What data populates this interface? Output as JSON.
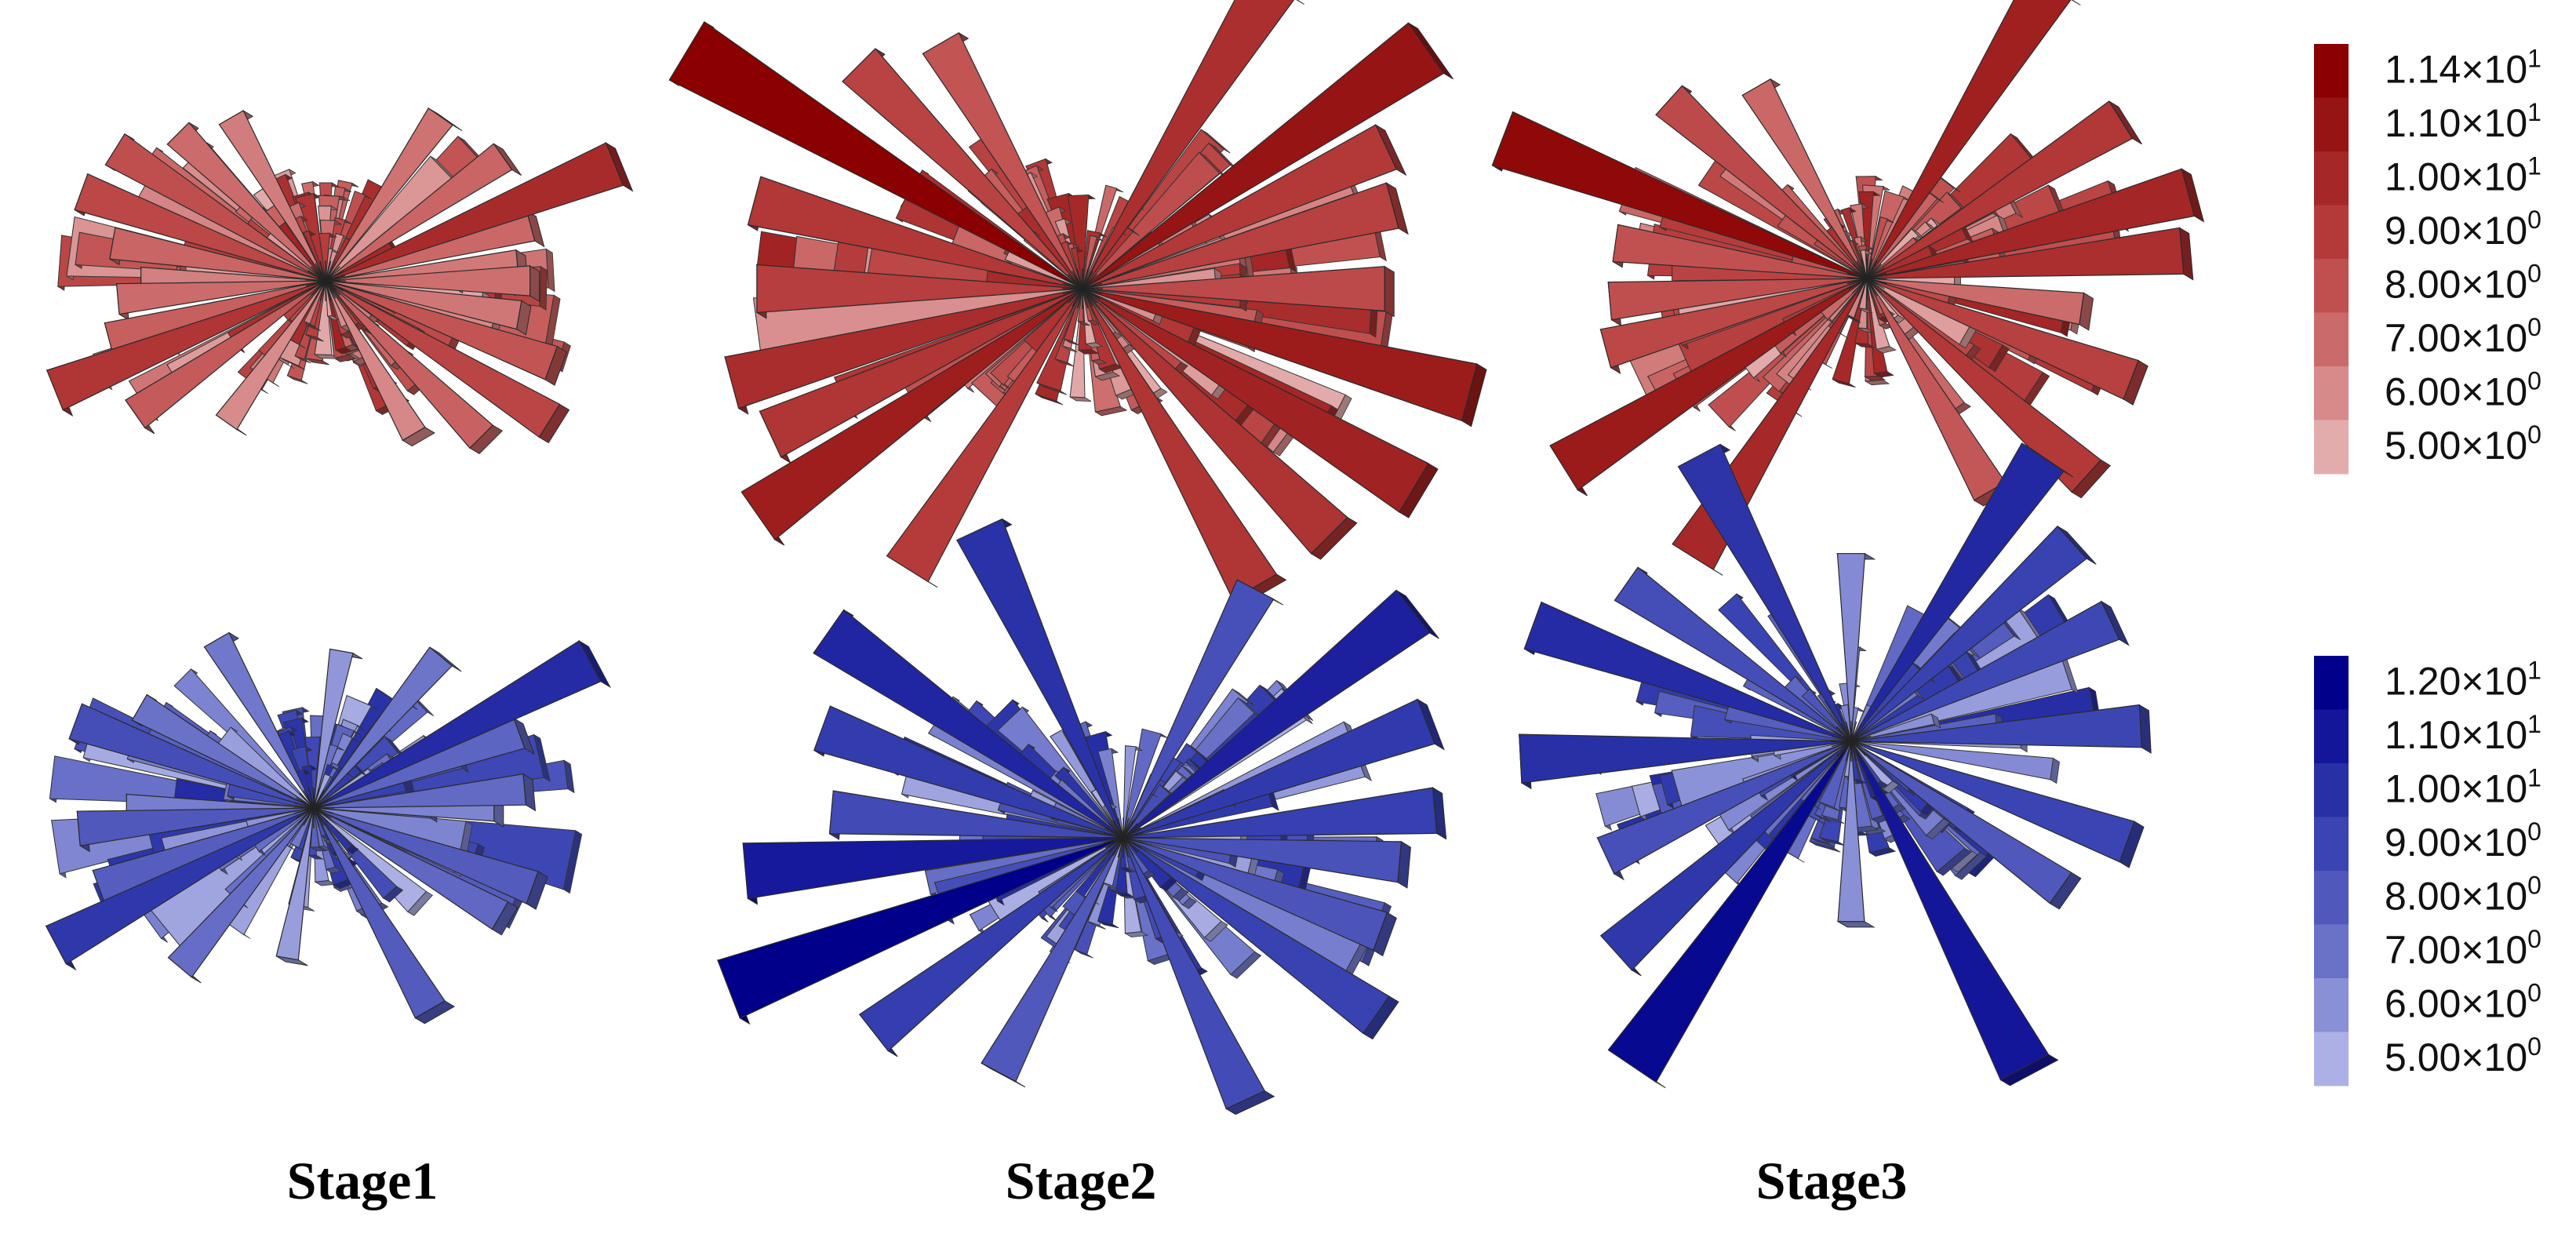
{
  "figure": {
    "stages": [
      "Stage1",
      "Stage2",
      "Stage3"
    ]
  },
  "colorbars": {
    "red": {
      "ticks": [
        {
          "mant": "1.14",
          "exp": "1"
        },
        {
          "mant": "1.10",
          "exp": "1"
        },
        {
          "mant": "1.00",
          "exp": "1"
        },
        {
          "mant": "9.00",
          "exp": "0"
        },
        {
          "mant": "8.00",
          "exp": "0"
        },
        {
          "mant": "7.00",
          "exp": "0"
        },
        {
          "mant": "6.00",
          "exp": "0"
        },
        {
          "mant": "5.00",
          "exp": "0"
        }
      ],
      "colors": [
        "#8b0000",
        "#961414",
        "#a52727",
        "#b43a3a",
        "#c05050",
        "#cb6a6a",
        "#d78a8a",
        "#e3acac"
      ]
    },
    "blue": {
      "ticks": [
        {
          "mant": "1.20",
          "exp": "1"
        },
        {
          "mant": "1.10",
          "exp": "1"
        },
        {
          "mant": "1.00",
          "exp": "1"
        },
        {
          "mant": "9.00",
          "exp": "0"
        },
        {
          "mant": "8.00",
          "exp": "0"
        },
        {
          "mant": "7.00",
          "exp": "0"
        },
        {
          "mant": "6.00",
          "exp": "0"
        },
        {
          "mant": "5.00",
          "exp": "0"
        }
      ],
      "colors": [
        "#00008b",
        "#14169a",
        "#2830a6",
        "#3a44b2",
        "#5058bc",
        "#6a72c8",
        "#8a90d6",
        "#acb0e4"
      ]
    }
  },
  "chart_data": [
    {
      "type": "rose",
      "title": "Stage1",
      "colormap": "red",
      "value_range": [
        5.0,
        11.4
      ],
      "bins": [
        {
          "angle_deg": 22,
          "value": 9.4
        },
        {
          "angle_deg": 202,
          "value": 8.9
        },
        {
          "angle_deg": 148,
          "value": 7.8
        },
        {
          "angle_deg": 328,
          "value": 8.2
        },
        {
          "angle_deg": 160,
          "value": 8.1
        },
        {
          "angle_deg": 340,
          "value": 7.6
        },
        {
          "angle_deg": 195,
          "value": 7.2
        },
        {
          "angle_deg": 15,
          "value": 6.9
        },
        {
          "angle_deg": 185,
          "value": 6.8
        },
        {
          "angle_deg": 5,
          "value": 6.4
        },
        {
          "angle_deg": 0,
          "value": 6.7
        },
        {
          "angle_deg": 180,
          "value": 6.2
        },
        {
          "angle_deg": 35,
          "value": 7.0
        },
        {
          "angle_deg": 215,
          "value": 7.4
        },
        {
          "angle_deg": 55,
          "value": 6.6
        },
        {
          "angle_deg": 235,
          "value": 5.9
        },
        {
          "angle_deg": 120,
          "value": 6.3
        },
        {
          "angle_deg": 300,
          "value": 6.0
        },
        {
          "angle_deg": 135,
          "value": 6.8
        },
        {
          "angle_deg": 315,
          "value": 7.1
        },
        {
          "angle_deg": 170,
          "value": 7.0
        },
        {
          "angle_deg": 350,
          "value": 6.5
        }
      ]
    },
    {
      "type": "rose",
      "title": "Stage2",
      "colormap": "red",
      "value_range": [
        5.0,
        11.4
      ],
      "bins": [
        {
          "angle_deg": 149,
          "value": 11.4
        },
        {
          "angle_deg": 329,
          "value": 9.8
        },
        {
          "angle_deg": 35,
          "value": 10.5
        },
        {
          "angle_deg": 215,
          "value": 10.0
        },
        {
          "angle_deg": 58,
          "value": 9.2
        },
        {
          "angle_deg": 238,
          "value": 8.6
        },
        {
          "angle_deg": 345,
          "value": 10.1
        },
        {
          "angle_deg": 165,
          "value": 8.8
        },
        {
          "angle_deg": 195,
          "value": 9.3
        },
        {
          "angle_deg": 15,
          "value": 8.4
        },
        {
          "angle_deg": 300,
          "value": 8.9
        },
        {
          "angle_deg": 120,
          "value": 7.6
        },
        {
          "angle_deg": 180,
          "value": 8.5
        },
        {
          "angle_deg": 0,
          "value": 8.0
        },
        {
          "angle_deg": 25,
          "value": 8.7
        },
        {
          "angle_deg": 205,
          "value": 8.9
        },
        {
          "angle_deg": 135,
          "value": 8.3
        },
        {
          "angle_deg": 315,
          "value": 9.0
        }
      ]
    },
    {
      "type": "rose",
      "title": "Stage3",
      "colormap": "red",
      "value_range": [
        5.0,
        11.4
      ],
      "bins": [
        {
          "angle_deg": 159,
          "value": 11.0
        },
        {
          "angle_deg": 339,
          "value": 8.4
        },
        {
          "angle_deg": 58,
          "value": 9.9
        },
        {
          "angle_deg": 238,
          "value": 9.5
        },
        {
          "angle_deg": 212,
          "value": 10.2
        },
        {
          "angle_deg": 32,
          "value": 8.8
        },
        {
          "angle_deg": 15,
          "value": 9.6
        },
        {
          "angle_deg": 195,
          "value": 8.1
        },
        {
          "angle_deg": 5,
          "value": 9.2
        },
        {
          "angle_deg": 185,
          "value": 7.8
        },
        {
          "angle_deg": 318,
          "value": 8.7
        },
        {
          "angle_deg": 138,
          "value": 8.0
        },
        {
          "angle_deg": 300,
          "value": 7.5
        },
        {
          "angle_deg": 120,
          "value": 6.9
        },
        {
          "angle_deg": 172,
          "value": 7.7
        },
        {
          "angle_deg": 352,
          "value": 6.8
        }
      ]
    },
    {
      "type": "rose",
      "title": "Stage1",
      "colormap": "blue",
      "value_range": [
        5.0,
        12.0
      ],
      "bins": [
        {
          "angle_deg": 28,
          "value": 10.2
        },
        {
          "angle_deg": 208,
          "value": 9.6
        },
        {
          "angle_deg": 160,
          "value": 8.5
        },
        {
          "angle_deg": 340,
          "value": 7.9
        },
        {
          "angle_deg": 185,
          "value": 8.0
        },
        {
          "angle_deg": 5,
          "value": 7.3
        },
        {
          "angle_deg": 200,
          "value": 7.8
        },
        {
          "angle_deg": 20,
          "value": 7.5
        },
        {
          "angle_deg": 300,
          "value": 7.9
        },
        {
          "angle_deg": 120,
          "value": 6.8
        },
        {
          "angle_deg": 330,
          "value": 7.4
        },
        {
          "angle_deg": 150,
          "value": 7.0
        },
        {
          "angle_deg": 50,
          "value": 6.9
        },
        {
          "angle_deg": 230,
          "value": 7.2
        },
        {
          "angle_deg": 0,
          "value": 6.4
        },
        {
          "angle_deg": 180,
          "value": 6.6
        },
        {
          "angle_deg": 80,
          "value": 5.8
        },
        {
          "angle_deg": 260,
          "value": 5.6
        }
      ]
    },
    {
      "type": "rose",
      "title": "Stage2",
      "colormap": "blue",
      "value_range": [
        5.0,
        12.0
      ],
      "bins": [
        {
          "angle_deg": 201,
          "value": 12.0
        },
        {
          "angle_deg": 21,
          "value": 9.5
        },
        {
          "angle_deg": 185,
          "value": 10.9
        },
        {
          "angle_deg": 5,
          "value": 9.2
        },
        {
          "angle_deg": 145,
          "value": 10.4
        },
        {
          "angle_deg": 325,
          "value": 9.1
        },
        {
          "angle_deg": 38,
          "value": 10.6
        },
        {
          "angle_deg": 218,
          "value": 9.3
        },
        {
          "angle_deg": 115,
          "value": 9.9
        },
        {
          "angle_deg": 295,
          "value": 8.6
        },
        {
          "angle_deg": 160,
          "value": 9.4
        },
        {
          "angle_deg": 340,
          "value": 8.2
        },
        {
          "angle_deg": 62,
          "value": 8.4
        },
        {
          "angle_deg": 242,
          "value": 8.0
        },
        {
          "angle_deg": 175,
          "value": 8.7
        },
        {
          "angle_deg": 355,
          "value": 8.3
        }
      ]
    },
    {
      "type": "rose",
      "title": "Stage3",
      "colormap": "blue",
      "value_range": [
        5.0,
        12.0
      ],
      "bins": [
        {
          "angle_deg": 236,
          "value": 11.6
        },
        {
          "angle_deg": 56,
          "value": 10.3
        },
        {
          "angle_deg": 298,
          "value": 11.0
        },
        {
          "angle_deg": 118,
          "value": 9.8
        },
        {
          "angle_deg": 160,
          "value": 10.2
        },
        {
          "angle_deg": 340,
          "value": 9.0
        },
        {
          "angle_deg": 183,
          "value": 10.0
        },
        {
          "angle_deg": 3,
          "value": 8.9
        },
        {
          "angle_deg": 222,
          "value": 9.6
        },
        {
          "angle_deg": 42,
          "value": 9.1
        },
        {
          "angle_deg": 25,
          "value": 8.8
        },
        {
          "angle_deg": 205,
          "value": 8.4
        },
        {
          "angle_deg": 145,
          "value": 8.5
        },
        {
          "angle_deg": 325,
          "value": 8.0
        },
        {
          "angle_deg": 90,
          "value": 6.2
        },
        {
          "angle_deg": 270,
          "value": 6.0
        }
      ]
    }
  ]
}
